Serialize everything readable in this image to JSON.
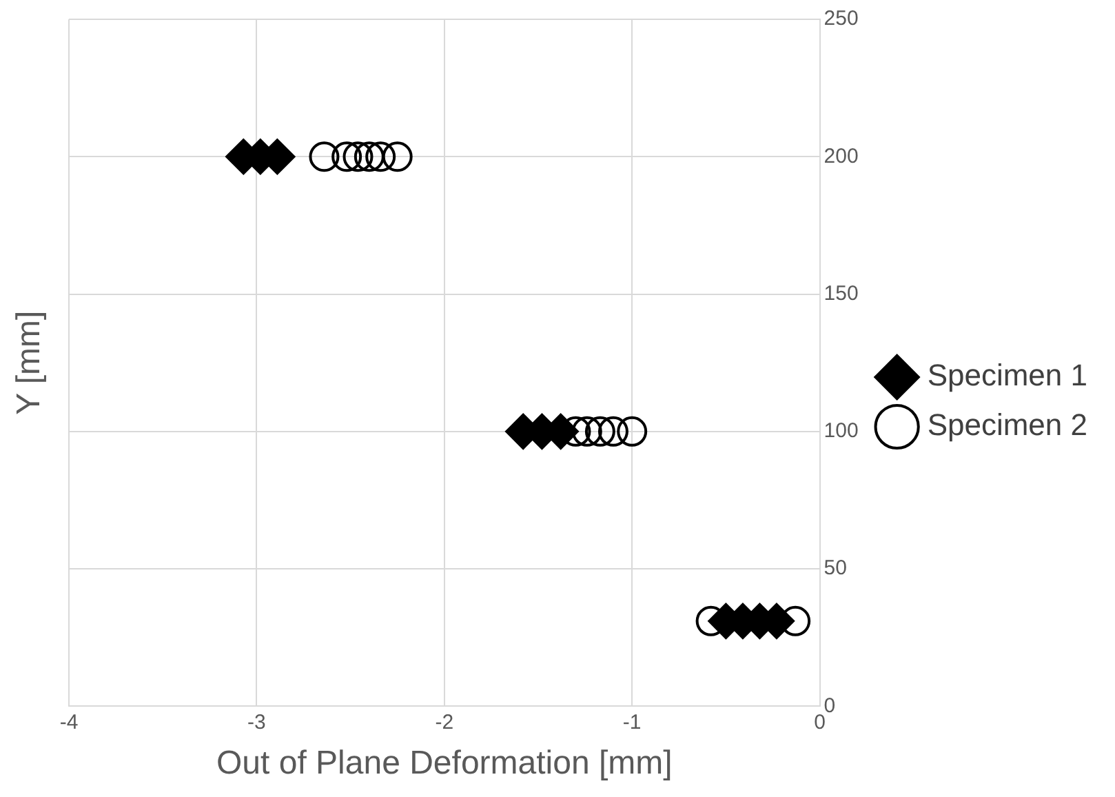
{
  "chart_data": {
    "type": "scatter",
    "xlabel": "Out of Plane Deformation [mm]",
    "ylabel": "Y [mm]",
    "xlim": [
      -4,
      0
    ],
    "xticks": [
      -4,
      -3,
      -2,
      -1,
      0
    ],
    "ylim": [
      0,
      250
    ],
    "yticks": [
      0,
      50,
      100,
      150,
      200,
      250
    ],
    "grid": true,
    "legend": "right",
    "series": [
      {
        "name": "Specimen 1",
        "color": "#000000",
        "marker": "diamond",
        "x": [
          -3.07,
          -2.98,
          -2.89,
          -1.58,
          -1.48,
          -1.38,
          -0.5,
          -0.41,
          -0.32,
          -0.23
        ],
        "values": [
          200,
          200,
          200,
          100,
          100,
          100,
          31,
          31,
          31,
          31
        ]
      },
      {
        "name": "Specimen 2",
        "color": "#000000",
        "marker": "circle",
        "x": [
          -2.64,
          -2.52,
          -2.46,
          -2.4,
          -2.34,
          -2.25,
          -1.3,
          -1.24,
          -1.17,
          -1.1,
          -1.0,
          -0.58,
          -0.13
        ],
        "values": [
          200,
          200,
          200,
          200,
          200,
          200,
          100,
          100,
          100,
          100,
          100,
          31,
          31
        ]
      }
    ]
  }
}
